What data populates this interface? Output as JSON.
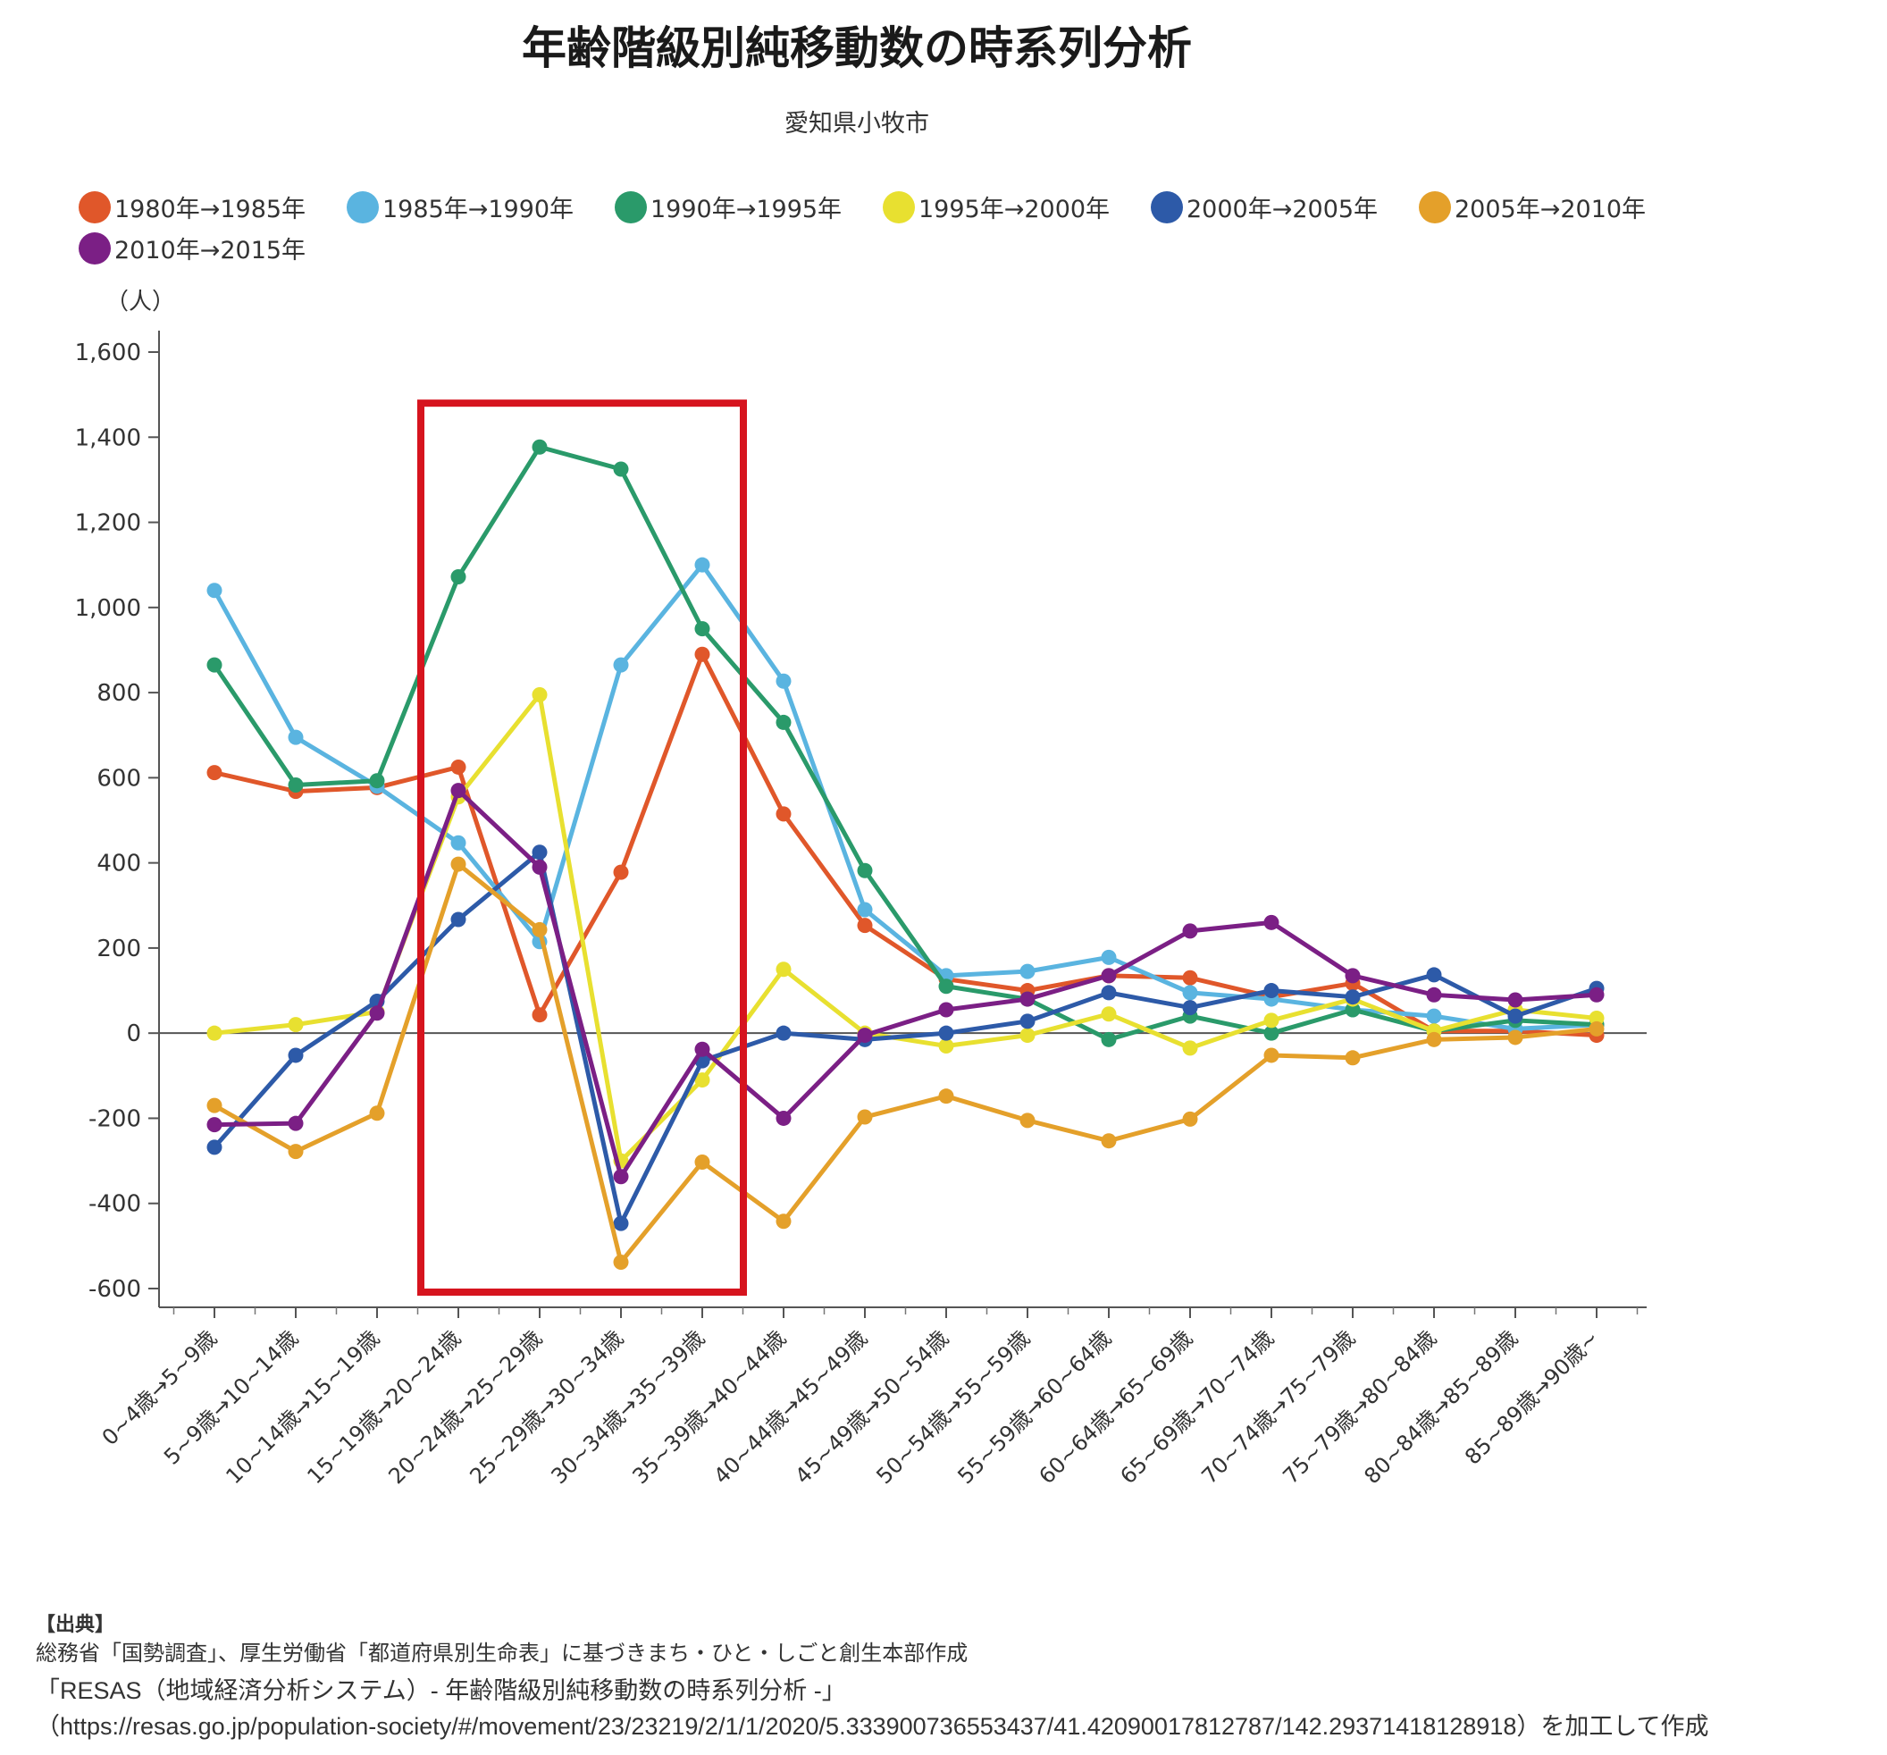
{
  "title": "年齢階級別純移動数の時系列分析",
  "subtitle": "愛知県小牧市",
  "y_unit": "（人）",
  "chart_data": {
    "type": "line",
    "title": "年齢階級別純移動数の時系列分析",
    "subtitle": "愛知県小牧市",
    "xlabel": "",
    "ylabel": "（人）",
    "ylim": [
      -600,
      1600
    ],
    "yticks": [
      1600,
      1400,
      1200,
      1000,
      800,
      600,
      400,
      200,
      0,
      -200,
      -400,
      -600
    ],
    "ytick_labels": [
      "1,600",
      "1,400",
      "1,200",
      "1,000",
      "800",
      "600",
      "400",
      "200",
      "0",
      "-200",
      "-400",
      "-600"
    ],
    "grid": false,
    "legend_position": "top-left",
    "categories": [
      "0~4歳→5~9歳",
      "5~9歳→10~14歳",
      "10~14歳→15~19歳",
      "15~19歳→20~24歳",
      "20~24歳→25~29歳",
      "25~29歳→30~34歳",
      "30~34歳→35~39歳",
      "35~39歳→40~44歳",
      "40~44歳→45~49歳",
      "45~49歳→50~54歳",
      "50~54歳→55~59歳",
      "55~59歳→60~64歳",
      "60~64歳→65~69歳",
      "65~69歳→70~74歳",
      "70~74歳→75~79歳",
      "75~79歳→80~84歳",
      "80~84歳→85~89歳",
      "85~89歳→90歳~"
    ],
    "series": [
      {
        "name": "1980年→1985年",
        "color": "#e0572a",
        "values": [
          612,
          568,
          577,
          625,
          43,
          378,
          890,
          515,
          253,
          127,
          100,
          135,
          130,
          85,
          117,
          5,
          5,
          -5
        ]
      },
      {
        "name": "1985年→1990年",
        "color": "#5ab4e0",
        "values": [
          1040,
          695,
          580,
          447,
          215,
          865,
          1100,
          827,
          290,
          135,
          145,
          178,
          95,
          80,
          55,
          40,
          10,
          20
        ]
      },
      {
        "name": "1990年→1995年",
        "color": "#2a9a6a",
        "values": [
          865,
          583,
          593,
          1072,
          1377,
          1325,
          950,
          730,
          382,
          110,
          80,
          -15,
          40,
          0,
          55,
          5,
          30,
          20
        ]
      },
      {
        "name": "1995年→2000年",
        "color": "#e8e030",
        "values": [
          0,
          20,
          50,
          555,
          795,
          -300,
          -110,
          150,
          0,
          -30,
          -5,
          45,
          -35,
          30,
          80,
          5,
          55,
          35
        ]
      },
      {
        "name": "2000年→2005年",
        "color": "#2d5aa8",
        "values": [
          -268,
          -52,
          75,
          267,
          425,
          -447,
          -65,
          0,
          -15,
          0,
          28,
          95,
          60,
          100,
          85,
          137,
          40,
          105
        ]
      },
      {
        "name": "2005年→2010年",
        "color": "#e4a02a",
        "values": [
          -170,
          -278,
          -188,
          397,
          243,
          -538,
          -303,
          -442,
          -197,
          -148,
          -205,
          -253,
          -202,
          -52,
          -58,
          -15,
          -10,
          10
        ]
      },
      {
        "name": "2010年→2015年",
        "color": "#7b1f85",
        "values": [
          -215,
          -212,
          47,
          570,
          390,
          -337,
          -38,
          -200,
          -5,
          55,
          80,
          135,
          240,
          260,
          135,
          90,
          78,
          90
        ]
      }
    ],
    "highlight_box": {
      "from_category": "15~19歳→20~24歳",
      "to_category": "30~34歳→35~39歳",
      "y_from": -600,
      "y_to": 1480,
      "color": "#d6141e"
    }
  },
  "source": {
    "header": "【出典】",
    "line1": "総務省「国勢調査」、厚生労働省「都道府県別生命表」に基づきまち・ひと・しごと創生本部作成",
    "line2": "「RESAS（地域経済分析システム）- 年齢階級別純移動数の時系列分析 -」",
    "line3": "（https://resas.go.jp/population-society/#/movement/23/23219/2/1/1/2020/5.333900736553437/41.42090017812787/142.29371418128918）を加工して作成"
  }
}
